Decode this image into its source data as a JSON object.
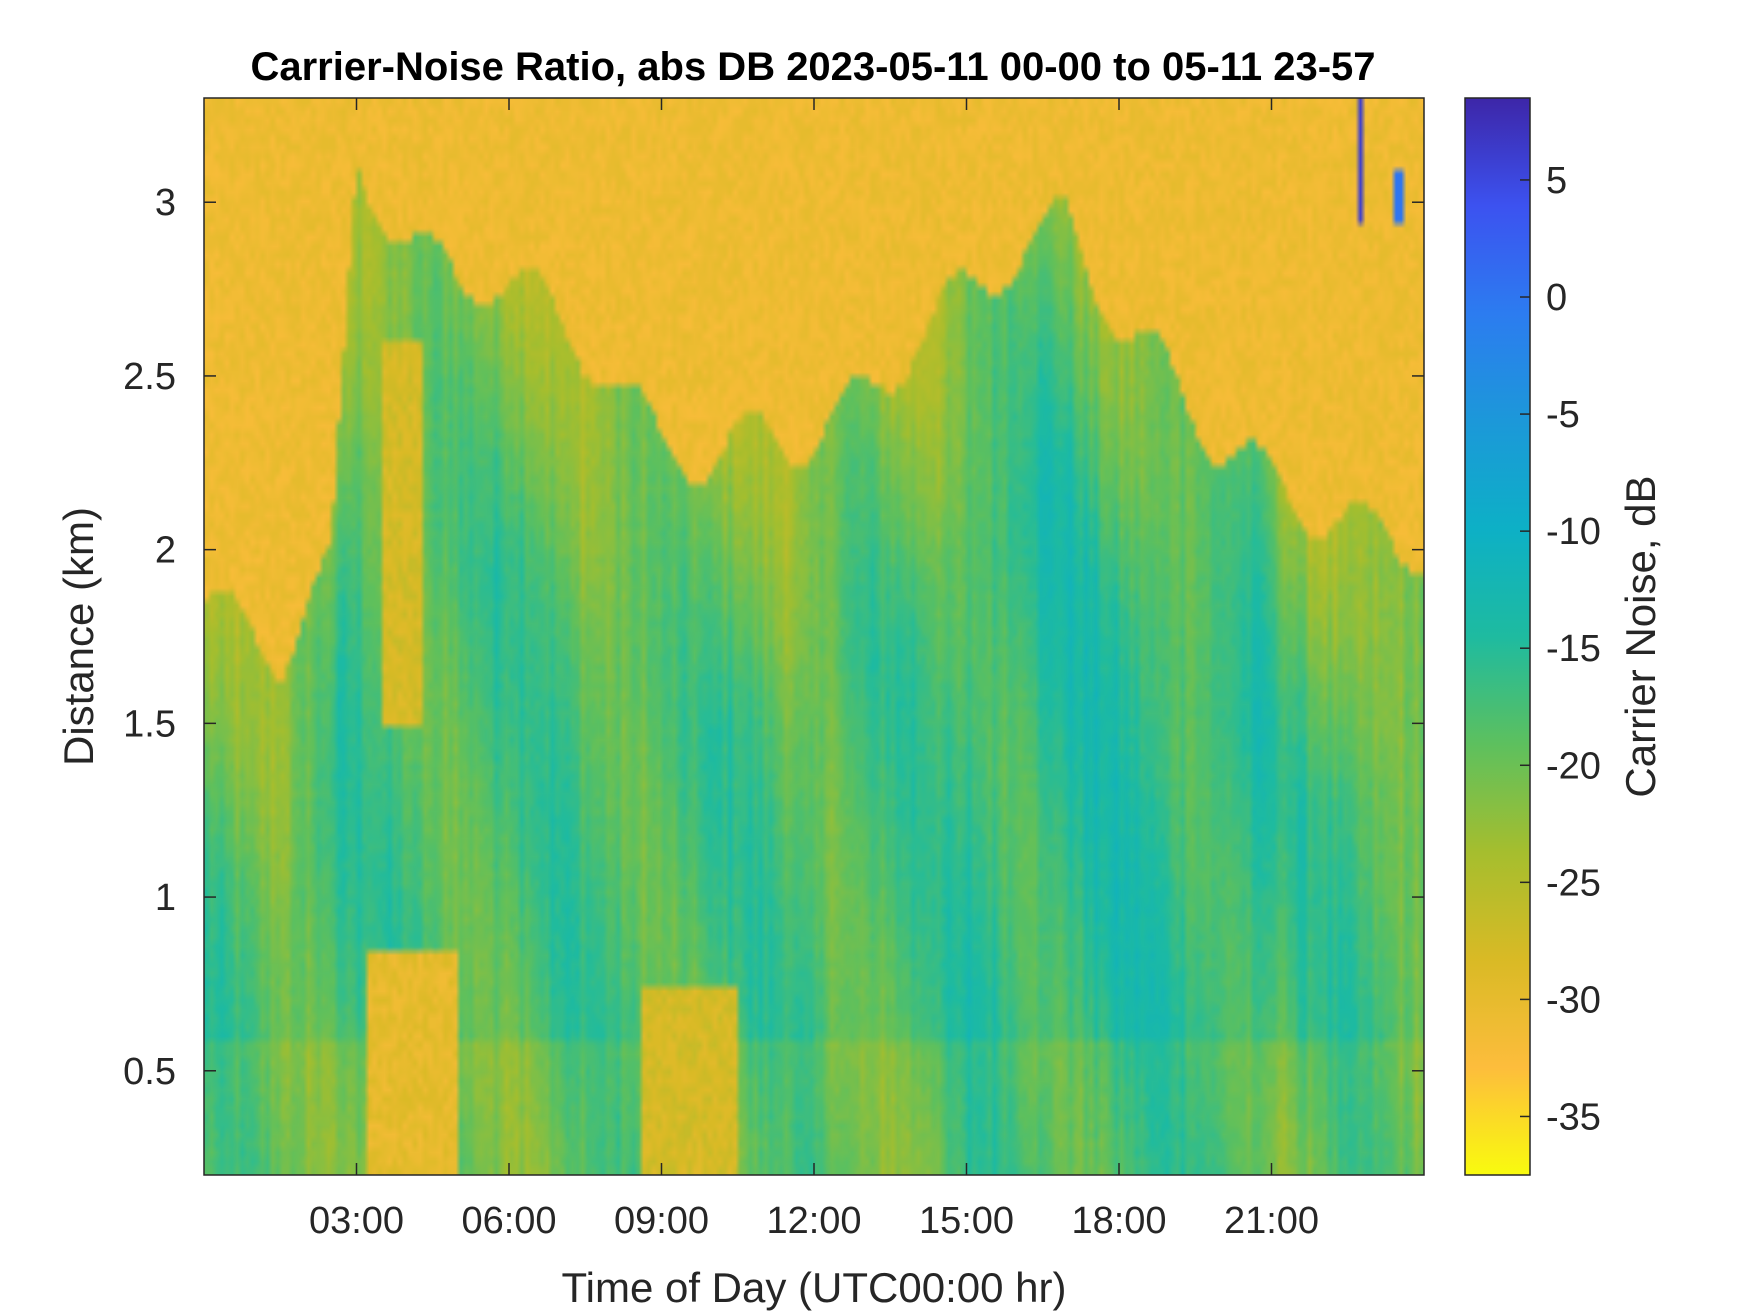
{
  "chart_data": {
    "type": "heatmap",
    "title": "Carrier-Noise Ratio, abs DB 2023-05-11 00-00 to 05-11 23-57",
    "xlabel": "Time of Day (UTC00:00 hr)",
    "ylabel": "Distance (km)",
    "colorbar_label": "Carrier Noise, dB",
    "x_range_hours": [
      0,
      24
    ],
    "x_ticks": [
      {
        "value": 3,
        "label": "03:00"
      },
      {
        "value": 6,
        "label": "06:00"
      },
      {
        "value": 9,
        "label": "09:00"
      },
      {
        "value": 12,
        "label": "12:00"
      },
      {
        "value": 15,
        "label": "15:00"
      },
      {
        "value": 18,
        "label": "18:00"
      },
      {
        "value": 21,
        "label": "21:00"
      }
    ],
    "y_range_km": [
      0.2,
      3.3
    ],
    "y_ticks": [
      {
        "value": 0.5,
        "label": "0.5"
      },
      {
        "value": 1,
        "label": "1"
      },
      {
        "value": 1.5,
        "label": "1.5"
      },
      {
        "value": 2,
        "label": "2"
      },
      {
        "value": 2.5,
        "label": "2.5"
      },
      {
        "value": 3,
        "label": "3"
      }
    ],
    "c_range_db": [
      -37.5,
      8.5
    ],
    "c_ticks": [
      {
        "value": 5,
        "label": "5"
      },
      {
        "value": 0,
        "label": "0"
      },
      {
        "value": -5,
        "label": "-5"
      },
      {
        "value": -10,
        "label": "-10"
      },
      {
        "value": -15,
        "label": "-15"
      },
      {
        "value": -20,
        "label": "-20"
      },
      {
        "value": -25,
        "label": "-25"
      },
      {
        "value": -30,
        "label": "-30"
      },
      {
        "value": -35,
        "label": "-35"
      }
    ],
    "colormap": "parula-reversed",
    "colormap_stops": [
      "#f9fb0e",
      "#fdbd3c",
      "#d9ba25",
      "#a5be2e",
      "#5dc05e",
      "#1ebba0",
      "#0db0c6",
      "#1c98d9",
      "#2c7cf0",
      "#3c52f0",
      "#3d26a8"
    ],
    "noise_floor_db": -31,
    "grid": false,
    "description_regions": [
      {
        "name": "upper-noise-floor",
        "t_start": 0,
        "t_end": 24,
        "range_note": "near-saturated -30 dB above boundary"
      },
      {
        "name": "boundary-layer",
        "t_start": 0,
        "t_end": 24,
        "range_note": "-15 to -22 dB below ~2.2 km"
      }
    ],
    "boundary_height_km": [
      {
        "t": 0.0,
        "h": 1.85
      },
      {
        "t": 1.5,
        "h": 1.7
      },
      {
        "t": 2.5,
        "h": 1.95
      },
      {
        "t": 3.0,
        "h": 3.1
      },
      {
        "t": 4.0,
        "h": 2.9
      },
      {
        "t": 5.0,
        "h": 2.75
      },
      {
        "t": 6.0,
        "h": 2.8
      },
      {
        "t": 7.0,
        "h": 2.65
      },
      {
        "t": 8.0,
        "h": 2.5
      },
      {
        "t": 9.0,
        "h": 2.3
      },
      {
        "t": 10.0,
        "h": 2.25
      },
      {
        "t": 11.0,
        "h": 2.35
      },
      {
        "t": 12.0,
        "h": 2.3
      },
      {
        "t": 13.0,
        "h": 2.45
      },
      {
        "t": 14.0,
        "h": 2.6
      },
      {
        "t": 15.0,
        "h": 2.75
      },
      {
        "t": 16.0,
        "h": 2.85
      },
      {
        "t": 17.0,
        "h": 2.95
      },
      {
        "t": 18.0,
        "h": 2.65
      },
      {
        "t": 19.0,
        "h": 2.5
      },
      {
        "t": 20.0,
        "h": 2.3
      },
      {
        "t": 21.0,
        "h": 2.2
      },
      {
        "t": 22.0,
        "h": 2.1
      },
      {
        "t": 23.0,
        "h": 2.05
      },
      {
        "t": 24.0,
        "h": 2.0
      }
    ],
    "low_snr_patches": [
      {
        "t_start": 3.2,
        "t_end": 5.0,
        "z_start": 0.2,
        "z_end": 0.85,
        "value_db": -30
      },
      {
        "t_start": 8.6,
        "t_end": 10.5,
        "z_start": 0.2,
        "z_end": 0.75,
        "value_db": -28
      },
      {
        "t_start": 3.5,
        "t_end": 4.3,
        "z_start": 1.5,
        "z_end": 2.6,
        "value_db": -28
      }
    ],
    "high_snr_streaks": [
      {
        "t": 22.75,
        "z_start": 2.95,
        "z_end": 3.3,
        "value_db": 6
      },
      {
        "t": 23.5,
        "z_start": 2.95,
        "z_end": 3.1,
        "value_db": 0
      }
    ]
  }
}
